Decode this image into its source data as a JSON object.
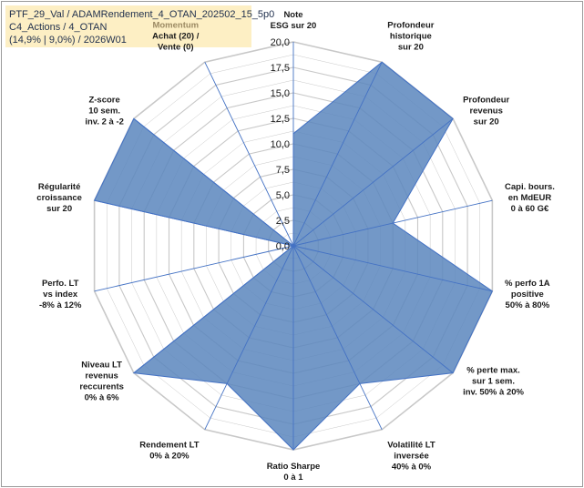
{
  "header": {
    "line1": "PTF_29_Val / ADAMRendement_4_OTAN_202502_15_5p0",
    "line2": "C4_Actions / 4_OTAN",
    "line3": "(14,9% | 9,0%) / 2026W01"
  },
  "colors": {
    "fill": "#5b86bd",
    "stroke": "#4472c4",
    "grid": "#c8c8c8",
    "spoke": "#4472c4",
    "highlight_label": "#9c8a63"
  },
  "chart_data": {
    "type": "radar",
    "title": "",
    "range": [
      0,
      20
    ],
    "tick_step": 2.5,
    "tick_labels": [
      "0,0",
      "2,5",
      "5,0",
      "7,5",
      "10,0",
      "12,5",
      "15,0",
      "17,5",
      "20,0"
    ],
    "axes": [
      {
        "lines": [
          "Note",
          "ESG sur 20"
        ],
        "value": 11.0
      },
      {
        "lines": [
          "Profondeur",
          "historique",
          "sur 20"
        ],
        "value": 20.0
      },
      {
        "lines": [
          "Profondeur",
          "revenus",
          "sur 20"
        ],
        "value": 20.0
      },
      {
        "lines": [
          "Capi. bours.",
          "en MdEUR",
          "0 à 60 G€"
        ],
        "value": 10.0
      },
      {
        "lines": [
          "% perfo 1A",
          "positive",
          "50% à 80%"
        ],
        "value": 20.0
      },
      {
        "lines": [
          "% perte max.",
          "sur 1 sem.",
          "inv. 50% à 20%"
        ],
        "value": 20.0
      },
      {
        "lines": [
          "Volatilité LT",
          "inversée",
          "40% à 0%"
        ],
        "value": 15.0
      },
      {
        "lines": [
          "Ratio Sharpe",
          "0 à 1"
        ],
        "value": 20.0
      },
      {
        "lines": [
          "Rendement LT",
          "0% à 20%"
        ],
        "value": 15.0
      },
      {
        "lines": [
          "Niveau LT",
          "revenus",
          "reccurents",
          "0% à 6%"
        ],
        "value": 20.0
      },
      {
        "lines": [
          "Perfo. LT",
          "vs index",
          "-8% à 12%"
        ],
        "value": 0.0
      },
      {
        "lines": [
          "Régularité",
          "croissance",
          "sur 20"
        ],
        "value": 20.0
      },
      {
        "lines": [
          "Z-score",
          "10 sem.",
          "inv. 2 à -2"
        ],
        "value": 20.0
      },
      {
        "lines": [
          "Momentum",
          "Achat (20) /",
          "Vente (0)"
        ],
        "value": 0.0,
        "highlight_first_line": true
      }
    ]
  }
}
